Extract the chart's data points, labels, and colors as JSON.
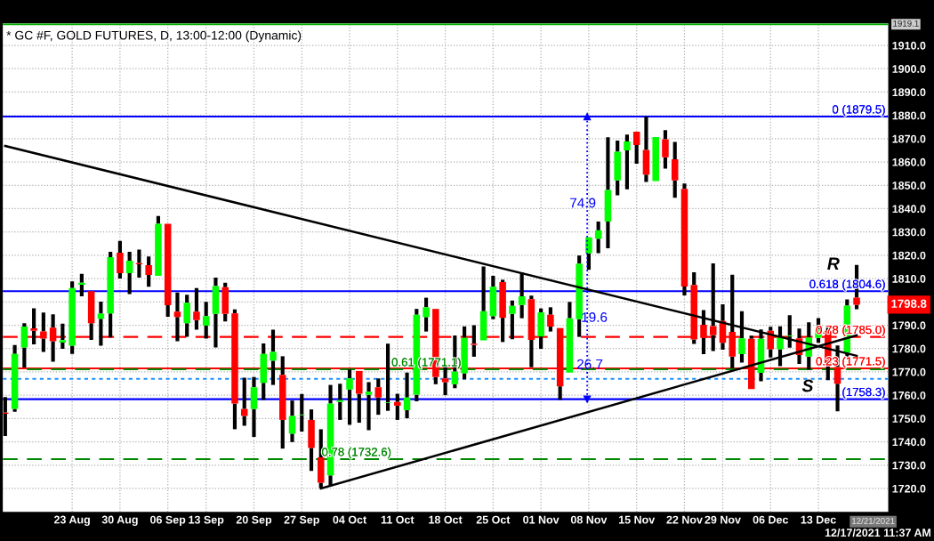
{
  "chart_data": {
    "type": "candlestick",
    "title": "* GC #F, GOLD FUTURES, D, 13:00-12:00 (Dynamic)",
    "categories": [
      null,
      null,
      null,
      null,
      null,
      null,
      null,
      "23 Aug",
      null,
      null,
      null,
      null,
      "30 Aug",
      null,
      null,
      null,
      null,
      "06 Sep",
      null,
      null,
      null,
      "13 Sep",
      null,
      null,
      null,
      null,
      "20 Sep",
      null,
      null,
      null,
      null,
      "27 Sep",
      null,
      null,
      null,
      null,
      "04 Oct",
      null,
      null,
      null,
      null,
      "11 Oct",
      null,
      null,
      null,
      null,
      "18 Oct",
      null,
      null,
      null,
      null,
      "25 Oct",
      null,
      null,
      null,
      null,
      "01 Nov",
      null,
      null,
      null,
      null,
      "08 Nov",
      null,
      null,
      null,
      null,
      "15 Nov",
      null,
      null,
      null,
      null,
      "22 Nov",
      null,
      null,
      null,
      "29 Nov",
      null,
      null,
      null,
      null,
      "06 Dec",
      null,
      null,
      null,
      null,
      "13 Dec",
      null,
      null,
      null,
      null
    ],
    "ohlc": [
      [
        1752.5,
        1759.2,
        1742.5,
        1752.0
      ],
      [
        1754.1,
        1781.5,
        1752.9,
        1777.7
      ],
      [
        1780.5,
        1790.9,
        1771.9,
        1789.4
      ],
      [
        1788.7,
        1797.3,
        1781.8,
        1787.6
      ],
      [
        1787.3,
        1795.4,
        1778.6,
        1784.3
      ],
      [
        1789.0,
        1794.7,
        1774.4,
        1783.1
      ],
      [
        1782.6,
        1790.7,
        1779.9,
        1783.6
      ],
      [
        1781.2,
        1808.8,
        1777.7,
        1805.9
      ],
      [
        1807.4,
        1812.0,
        1802.4,
        1808.2
      ],
      [
        1804.6,
        1804.6,
        1783.7,
        1790.9
      ],
      [
        1792.8,
        1800.1,
        1781.2,
        1795.0
      ],
      [
        1795.1,
        1821.5,
        1784.8,
        1819.2
      ],
      [
        1821.1,
        1826.2,
        1810.0,
        1812.3
      ],
      [
        1812.3,
        1821.5,
        1803.4,
        1817.7
      ],
      [
        1816.6,
        1822.4,
        1810.4,
        1816.1
      ],
      [
        1815.8,
        1819.5,
        1806.5,
        1811.6
      ],
      [
        1811.2,
        1836.8,
        1811.2,
        1833.5
      ],
      [
        1833.5,
        1833.5,
        1793.6,
        1798.6
      ],
      [
        1795.8,
        1804.0,
        1783.1,
        1793.5
      ],
      [
        1790.9,
        1803.1,
        1785.0,
        1799.6
      ],
      [
        1795.8,
        1805.9,
        1788.1,
        1792.2
      ],
      [
        1789.8,
        1800.0,
        1784.3,
        1793.9
      ],
      [
        1794.9,
        1810.4,
        1780.5,
        1806.8
      ],
      [
        1806.3,
        1808.2,
        1791.6,
        1794.9
      ],
      [
        1795.1,
        1796.8,
        1745.4,
        1756.4
      ],
      [
        1754.1,
        1767.5,
        1746.9,
        1751.1
      ],
      [
        1754.1,
        1767.8,
        1742.1,
        1763.4
      ],
      [
        1765.3,
        1782.2,
        1758.0,
        1777.7
      ],
      [
        1774.8,
        1788.1,
        1764.4,
        1778.6
      ],
      [
        1768.7,
        1776.7,
        1737.1,
        1749.4
      ],
      [
        1743.5,
        1757.7,
        1739.9,
        1751.1
      ],
      [
        1751.5,
        1760.5,
        1744.4,
        1751.7
      ],
      [
        1749.4,
        1753.9,
        1727.5,
        1737.4
      ],
      [
        1733.3,
        1745.4,
        1720.3,
        1722.5
      ],
      [
        1725.6,
        1764.4,
        1720.9,
        1756.4
      ],
      [
        1757.1,
        1764.9,
        1749.4,
        1757.9
      ],
      [
        1762.4,
        1771.0,
        1747.3,
        1767.2
      ],
      [
        1770.4,
        1770.4,
        1748.2,
        1760.6
      ],
      [
        1760.2,
        1765.6,
        1745.0,
        1761.5
      ],
      [
        1763.4,
        1767.2,
        1751.6,
        1759.0
      ],
      [
        1756.7,
        1782.1,
        1753.3,
        1756.9
      ],
      [
        1757.1,
        1760.6,
        1749.4,
        1755.5
      ],
      [
        1753.6,
        1769.7,
        1750.1,
        1759.0
      ],
      [
        1760.2,
        1797.0,
        1757.4,
        1794.5
      ],
      [
        1793.5,
        1801.8,
        1787.3,
        1797.7
      ],
      [
        1797.0,
        1797.0,
        1764.7,
        1767.8
      ],
      [
        1767.2,
        1772.3,
        1760.0,
        1765.6
      ],
      [
        1764.7,
        1785.6,
        1763.0,
        1770.1
      ],
      [
        1769.4,
        1789.5,
        1766.8,
        1784.6
      ],
      [
        1782.1,
        1790.0,
        1776.5,
        1781.6
      ],
      [
        1783.5,
        1815.2,
        1783.5,
        1796.0
      ],
      [
        1793.9,
        1811.2,
        1792.6,
        1806.5
      ],
      [
        1808.5,
        1809.5,
        1782.8,
        1793.2
      ],
      [
        1794.9,
        1800.6,
        1784.0,
        1798.3
      ],
      [
        1798.7,
        1812.6,
        1793.0,
        1802.4
      ],
      [
        1801.2,
        1802.7,
        1772.0,
        1783.7
      ],
      [
        1785.2,
        1797.2,
        1779.9,
        1795.5
      ],
      [
        1794.5,
        1797.7,
        1787.3,
        1789.4
      ],
      [
        1788.8,
        1788.8,
        1758.0,
        1763.8
      ],
      [
        1769.7,
        1800.0,
        1769.7,
        1793.0
      ],
      [
        1792.6,
        1819.9,
        1785.0,
        1816.4
      ],
      [
        1820.8,
        1827.7,
        1813.8,
        1827.7
      ],
      [
        1827.1,
        1834.5,
        1820.9,
        1830.7
      ],
      [
        1834.5,
        1870.6,
        1823.0,
        1848.0
      ],
      [
        1852.1,
        1869.2,
        1845.7,
        1864.4
      ],
      [
        1865.0,
        1871.8,
        1848.3,
        1868.8
      ],
      [
        1873.0,
        1873.0,
        1859.3,
        1867.3
      ],
      [
        1865.2,
        1879.5,
        1851.4,
        1854.6
      ],
      [
        1851.8,
        1870.7,
        1851.8,
        1870.7
      ],
      [
        1869.8,
        1873.7,
        1857.2,
        1862.0
      ],
      [
        1861.2,
        1868.6,
        1844.7,
        1852.1
      ],
      [
        1848.5,
        1850.8,
        1802.8,
        1806.6
      ],
      [
        1807.3,
        1812.7,
        1782.0,
        1783.9
      ],
      [
        1790.2,
        1796.5,
        1777.6,
        1784.6
      ],
      [
        1789.6,
        1816.5,
        1778.9,
        1785.7
      ],
      [
        1791.8,
        1799.0,
        1779.5,
        1782.5
      ],
      [
        1787.1,
        1811.7,
        1771.5,
        1776.6
      ],
      [
        1777.6,
        1796.0,
        1774.0,
        1784.4
      ],
      [
        1784.2,
        1785.5,
        1762.6,
        1762.6
      ],
      [
        1769.6,
        1788.2,
        1766.0,
        1784.2
      ],
      [
        1787.6,
        1789.3,
        1776.2,
        1779.7
      ],
      [
        1779.7,
        1789.5,
        1772.5,
        1784.8
      ],
      [
        1785.3,
        1794.3,
        1780.4,
        1785.6
      ],
      [
        1784.4,
        1788.6,
        1773.4,
        1777.2
      ],
      [
        1776.6,
        1791.2,
        1770.9,
        1784.8
      ],
      [
        1784.6,
        1793.1,
        1782.5,
        1788.2
      ],
      [
        1787.6,
        1789.9,
        1766.4,
        1772.4
      ],
      [
        1772.1,
        1781.3,
        1753.1,
        1764.9
      ],
      [
        1778.2,
        1801.1,
        1776.2,
        1798.4
      ],
      [
        1801.8,
        1815.9,
        1796.9,
        1798.8
      ]
    ],
    "colors": [
      "#ff0000",
      "#00ff00",
      "#00ff00",
      "#ff0000",
      "#ff0000",
      "#ff0000",
      "#00ff00",
      "#00ff00",
      "#00ff00",
      "#ff0000",
      "#00ff00",
      "#00ff00",
      "#ff0000",
      "#00ff00",
      "#ff0000",
      "#ff0000",
      "#00ff00",
      "#ff0000",
      "#ff0000",
      "#00ff00",
      "#ff0000",
      "#00ff00",
      "#00ff00",
      "#ff0000",
      "#ff0000",
      "#ff0000",
      "#00ff00",
      "#00ff00",
      "#00ff00",
      "#ff0000",
      "#00ff00",
      "#00ff00",
      "#ff0000",
      "#ff0000",
      "#00ff00",
      "#00ff00",
      "#00ff00",
      "#ff0000",
      "#00ff00",
      "#ff0000",
      "#00ff00",
      "#ff0000",
      "#00ff00",
      "#00ff00",
      "#00ff00",
      "#ff0000",
      "#ff0000",
      "#00ff00",
      "#00ff00",
      "#ff0000",
      "#00ff00",
      "#00ff00",
      "#ff0000",
      "#00ff00",
      "#00ff00",
      "#ff0000",
      "#00ff00",
      "#ff0000",
      "#ff0000",
      "#00ff00",
      "#00ff00",
      "#00ff00",
      "#00ff00",
      "#00ff00",
      "#00ff00",
      "#00ff00",
      "#ff0000",
      "#ff0000",
      "#00ff00",
      "#ff0000",
      "#ff0000",
      "#ff0000",
      "#ff0000",
      "#ff0000",
      "#ff0000",
      "#ff0000",
      "#ff0000",
      "#00ff00",
      "#ff0000",
      "#00ff00",
      "#ff0000",
      "#00ff00",
      "#00ff00",
      "#ff0000",
      "#00ff00",
      "#00ff00",
      "#ff0000",
      "#ff0000",
      "#00ff00",
      "#ff0000"
    ],
    "series": [
      {
        "type": "line",
        "color": "#000000",
        "values": [
          1866.9,
          null,
          null,
          null,
          null,
          null,
          null,
          null,
          null,
          null,
          null,
          null,
          null,
          null,
          null,
          null,
          null,
          null,
          null,
          null,
          null,
          null,
          null,
          null,
          null,
          null,
          null,
          null,
          null,
          null,
          null,
          null,
          null,
          null,
          null,
          null,
          null,
          null,
          null,
          null,
          null,
          null,
          null,
          null,
          null,
          null,
          null,
          null,
          null,
          null,
          null,
          null,
          null,
          null,
          null,
          null,
          null,
          null,
          null,
          null,
          null,
          null,
          null,
          null,
          null,
          null,
          null,
          null,
          null,
          null,
          null,
          null,
          null,
          null,
          null,
          null,
          null,
          null,
          null,
          null,
          null,
          null,
          null,
          null,
          null,
          null,
          null,
          null,
          null,
          1776.9
        ]
      },
      {
        "type": "line",
        "color": "#000000",
        "values": [
          null,
          null,
          null,
          null,
          null,
          null,
          null,
          null,
          null,
          null,
          null,
          null,
          null,
          null,
          null,
          null,
          null,
          null,
          null,
          null,
          null,
          null,
          null,
          null,
          null,
          null,
          null,
          null,
          null,
          null,
          null,
          null,
          null,
          1720.0,
          null,
          null,
          null,
          null,
          null,
          null,
          null,
          null,
          null,
          null,
          null,
          null,
          null,
          null,
          null,
          null,
          null,
          null,
          null,
          null,
          null,
          null,
          null,
          null,
          null,
          null,
          null,
          null,
          null,
          null,
          null,
          null,
          null,
          null,
          null,
          null,
          null,
          null,
          null,
          null,
          null,
          null,
          null,
          null,
          null,
          null,
          null,
          null,
          null,
          null,
          null,
          null,
          null,
          null,
          null,
          1785.7
        ]
      }
    ],
    "ylim": [
      1710,
      1919.5
    ],
    "yticks": [
      {
        "value": 1720,
        "label": "1720.0"
      },
      {
        "value": 1730,
        "label": "1730.0"
      },
      {
        "value": 1740,
        "label": "1740.0"
      },
      {
        "value": 1750,
        "label": "1750.0"
      },
      {
        "value": 1760,
        "label": "1760.0"
      },
      {
        "value": 1770,
        "label": "1770.0"
      },
      {
        "value": 1780,
        "label": "1780.0"
      },
      {
        "value": 1790,
        "label": "1790.0"
      },
      {
        "value": 1800,
        "label": null
      },
      {
        "value": 1810,
        "label": "1810.0"
      },
      {
        "value": 1820,
        "label": "1820.0"
      },
      {
        "value": 1830,
        "label": "1830.0"
      },
      {
        "value": 1840,
        "label": "1840.0"
      },
      {
        "value": 1850,
        "label": "1850.0"
      },
      {
        "value": 1860,
        "label": "1860.0"
      },
      {
        "value": 1870,
        "label": "1870.0"
      },
      {
        "value": 1880,
        "label": "1880.0"
      },
      {
        "value": 1890,
        "label": "1890.0"
      },
      {
        "value": 1900,
        "label": "1900.0"
      },
      {
        "value": 1910,
        "label": "1910.0"
      }
    ],
    "ref_lines": [
      {
        "axis": "y",
        "value": 1919.1,
        "label": "1919.1",
        "color": "#00aa00",
        "line_style": "solid"
      },
      {
        "axis": "y",
        "value": 1879.5,
        "label": "0 (1879.5)",
        "color": "#0000ff",
        "line_style": "solid"
      },
      {
        "axis": "y",
        "value": 1804.6,
        "label": "0.618 (1804.6)",
        "color": "#0000ff",
        "line_style": "solid"
      },
      {
        "axis": "y",
        "value": 1785.0,
        "label": "0.78 (1785.0)",
        "color": "#ff0000",
        "line_style": "dashed"
      },
      {
        "axis": "y",
        "value": 1771.5,
        "label": "0.23 (1771.5)",
        "color": "#ff0000",
        "line_style": "solid"
      },
      {
        "axis": "y",
        "value": 1771.1,
        "label": "0.61 (1771.1)",
        "color": "#008800",
        "line_style": "dashed"
      },
      {
        "axis": "y",
        "value": 1767.0,
        "color": "#1e90ff",
        "line_style": "dotted"
      },
      {
        "axis": "y",
        "value": 1758.3,
        "label": "(1758.3)",
        "color": "#0000ff",
        "line_style": "solid"
      },
      {
        "axis": "y",
        "value": 1732.6,
        "label": "0.78 (1732.6)",
        "color": "#008800",
        "line_style": "dashed"
      }
    ],
    "annotations": [
      "74.9",
      "19.6",
      "26.7",
      "R",
      "S",
      "1798.8",
      "12/21/2021",
      "12/17/2021 11:37 AM"
    ],
    "grid": true,
    "legend": false
  }
}
